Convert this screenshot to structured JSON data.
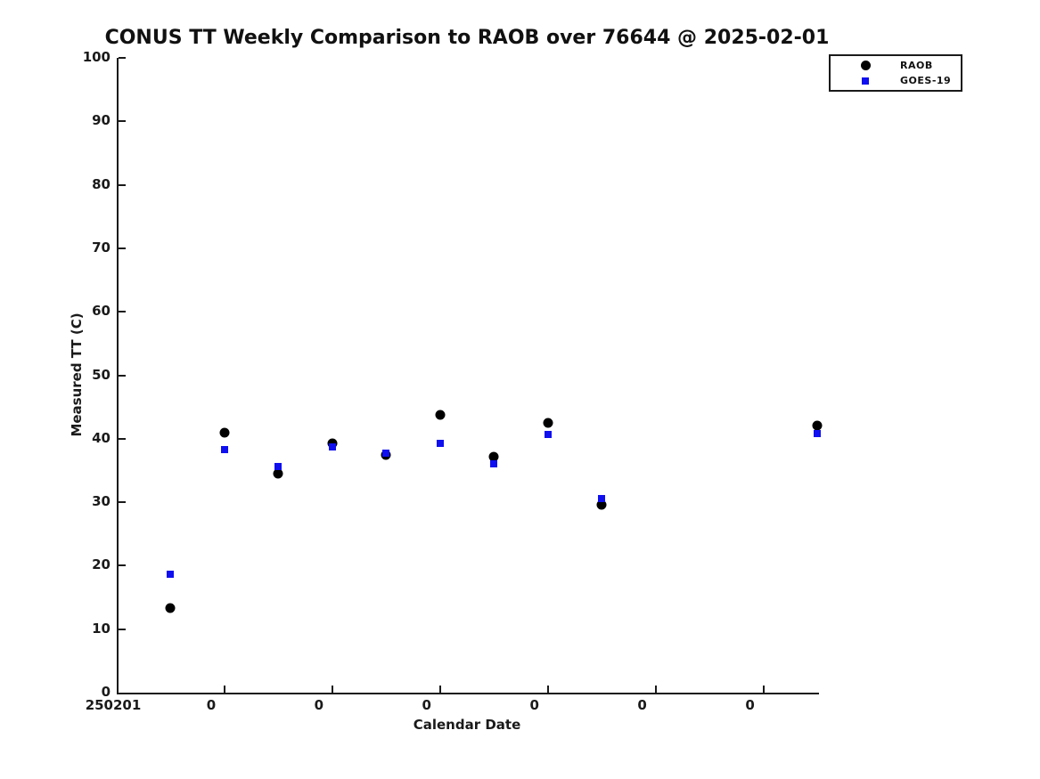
{
  "chart": {
    "title": "CONUS TT Weekly Comparison to RAOB over 76644 @ 2025-02-01",
    "xlabel": "Calendar Date",
    "ylabel": "Measured TT (C)",
    "colors": {
      "raob": "#000000",
      "goes19": "#0f0ff0",
      "axis": "#1a1a1a"
    },
    "legend": {
      "items": [
        {
          "label": "RAOB",
          "marker": "circle",
          "color": "#000000"
        },
        {
          "label": "GOES-19",
          "marker": "square",
          "color": "#0f0ff0"
        }
      ],
      "position": "top-right"
    }
  },
  "chart_data": {
    "type": "scatter",
    "title": "CONUS TT Weekly Comparison to RAOB over 76644 @ 2025-02-01",
    "xlabel": "Calendar Date",
    "ylabel": "Measured TT (C)",
    "grid": false,
    "legend_position": "top-right",
    "x_days_from_20250201": [
      0.5,
      1.0,
      1.5,
      2.0,
      2.5,
      3.0,
      3.5,
      4.0,
      4.5,
      6.5
    ],
    "series": [
      {
        "name": "RAOB",
        "marker": "circle",
        "color": "#000000",
        "values": [
          13.3,
          41.0,
          34.5,
          39.3,
          37.4,
          43.8,
          37.2,
          42.5,
          29.6,
          42.1
        ]
      },
      {
        "name": "GOES-19",
        "marker": "square",
        "color": "#0f0ff0",
        "values": [
          18.7,
          38.3,
          35.6,
          38.7,
          37.7,
          39.3,
          36.0,
          40.7,
          30.6,
          40.8
        ]
      }
    ],
    "x_axis": {
      "range_days": [
        0,
        6.5
      ],
      "origin_label": "250201",
      "tick_positions_days": [
        1,
        2,
        3,
        4,
        5,
        6
      ],
      "tick_labels": [
        "0",
        "0",
        "0",
        "0",
        "0",
        "0"
      ]
    },
    "y_axis": {
      "range": [
        0,
        100
      ],
      "ticks": [
        0,
        10,
        20,
        30,
        40,
        50,
        60,
        70,
        80,
        90,
        100
      ]
    }
  }
}
